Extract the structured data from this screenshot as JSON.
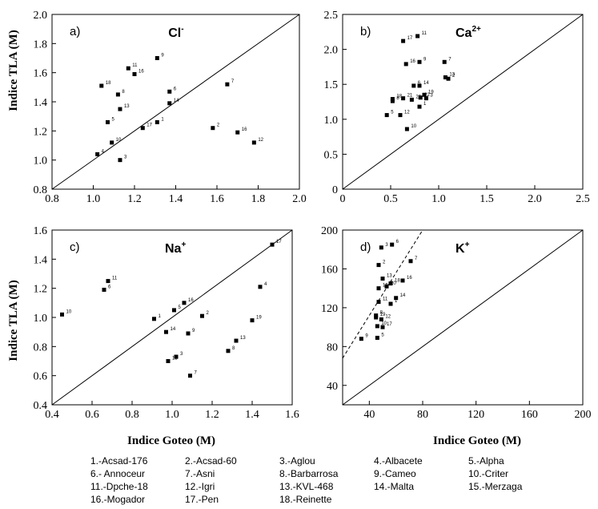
{
  "ylabel": "Indice TLA  (M)",
  "xlabel": "Indice Goteo  (M)",
  "legend": [
    "1.-Acsad-176",
    "2.-Acsad-60",
    "3.-Aglou",
    "4.-Albacete",
    "5.-Alpha",
    "6.- Annoceur",
    "7.-Asni",
    "8.-Barbarrosa",
    "9.-Cameo",
    "10.-Criter",
    "11.-Dpche-18",
    "12.-Igri",
    "13.-KVL-468",
    "14.-Malta",
    "15.-Merzaga",
    "16.-Mogador",
    "17.-Pen",
    "18.-Reinette"
  ],
  "chart_data": [
    {
      "type": "scatter",
      "panel": "a)",
      "ion": "Cl",
      "ion_sup": "-",
      "xlim": [
        0.8,
        2.0
      ],
      "ylim": [
        0.8,
        2.0
      ],
      "xticks": [
        "0.8",
        "1.0",
        "1.2",
        "1.4",
        "1.6",
        "1.8",
        "2.0"
      ],
      "yticks": [
        "0.8",
        "1.0",
        "1.2",
        "1.4",
        "1.6",
        "1.8",
        "2.0"
      ],
      "reference_line": "1:1",
      "points": [
        {
          "label": "1",
          "x": 1.31,
          "y": 1.26
        },
        {
          "label": "2",
          "x": 1.58,
          "y": 1.22
        },
        {
          "label": "3",
          "x": 1.13,
          "y": 1.0
        },
        {
          "label": "4",
          "x": 1.02,
          "y": 1.04
        },
        {
          "label": "5",
          "x": 1.07,
          "y": 1.26
        },
        {
          "label": "6",
          "x": 1.37,
          "y": 1.47
        },
        {
          "label": "7",
          "x": 1.65,
          "y": 1.52
        },
        {
          "label": "8",
          "x": 1.12,
          "y": 1.45
        },
        {
          "label": "9",
          "x": 1.31,
          "y": 1.7
        },
        {
          "label": "10",
          "x": 1.09,
          "y": 1.12
        },
        {
          "label": "11",
          "x": 1.17,
          "y": 1.63
        },
        {
          "label": "12",
          "x": 1.78,
          "y": 1.12
        },
        {
          "label": "13",
          "x": 1.13,
          "y": 1.35
        },
        {
          "label": "14",
          "x": 1.37,
          "y": 1.39
        },
        {
          "label": "16",
          "x": 1.2,
          "y": 1.59
        },
        {
          "label": "16",
          "x": 1.7,
          "y": 1.19
        },
        {
          "label": "17",
          "x": 1.24,
          "y": 1.22
        },
        {
          "label": "18",
          "x": 1.04,
          "y": 1.51
        }
      ]
    },
    {
      "type": "scatter",
      "panel": "b)",
      "ion": "Ca",
      "ion_sup": "2+",
      "xlim": [
        0,
        2.5
      ],
      "ylim": [
        0,
        2.5
      ],
      "xticks": [
        "0",
        "0.5",
        "1.0",
        "1.5",
        "2.0",
        "2.5"
      ],
      "yticks": [
        "0",
        "0.5",
        "1.0",
        "1.5",
        "2.0",
        "2.5"
      ],
      "reference_line": "1:1",
      "points": [
        {
          "label": "1",
          "x": 0.8,
          "y": 1.18
        },
        {
          "label": "2",
          "x": 1.1,
          "y": 1.58
        },
        {
          "label": "3",
          "x": 0.87,
          "y": 1.3
        },
        {
          "label": "5",
          "x": 0.46,
          "y": 1.06
        },
        {
          "label": "6",
          "x": 0.74,
          "y": 1.48
        },
        {
          "label": "7",
          "x": 1.06,
          "y": 1.82
        },
        {
          "label": "8",
          "x": 0.52,
          "y": 1.26
        },
        {
          "label": "9",
          "x": 0.8,
          "y": 1.82
        },
        {
          "label": "10",
          "x": 0.67,
          "y": 0.86
        },
        {
          "label": "11",
          "x": 0.78,
          "y": 2.19
        },
        {
          "label": "12",
          "x": 0.6,
          "y": 1.06
        },
        {
          "label": "13",
          "x": 1.07,
          "y": 1.6
        },
        {
          "label": "14",
          "x": 0.8,
          "y": 1.48
        },
        {
          "label": "16",
          "x": 0.66,
          "y": 1.79
        },
        {
          "label": "17",
          "x": 0.63,
          "y": 2.12
        },
        {
          "label": "18",
          "x": 0.52,
          "y": 1.29
        },
        {
          "label": "19",
          "x": 0.85,
          "y": 1.35
        },
        {
          "label": "20",
          "x": 0.72,
          "y": 1.28
        },
        {
          "label": "21",
          "x": 0.63,
          "y": 1.3
        },
        {
          "label": "22",
          "x": 0.81,
          "y": 1.31
        }
      ]
    },
    {
      "type": "scatter",
      "panel": "c)",
      "ion": "Na",
      "ion_sup": "+",
      "xlim": [
        0.4,
        1.6
      ],
      "ylim": [
        0.4,
        1.6
      ],
      "xticks": [
        "0.4",
        "0.6",
        "0.8",
        "1.0",
        "1.2",
        "1.4",
        "1.6"
      ],
      "yticks": [
        "0.4",
        "0.6",
        "0.8",
        "1.0",
        "1.2",
        "1.4",
        "1.6"
      ],
      "reference_line": "1:1",
      "points": [
        {
          "label": "1",
          "x": 0.91,
          "y": 0.99
        },
        {
          "label": "2",
          "x": 1.15,
          "y": 1.01
        },
        {
          "label": "3",
          "x": 1.02,
          "y": 0.73
        },
        {
          "label": "4",
          "x": 1.44,
          "y": 1.21
        },
        {
          "label": "5",
          "x": 1.01,
          "y": 1.05
        },
        {
          "label": "6",
          "x": 0.66,
          "y": 1.19
        },
        {
          "label": "7",
          "x": 1.09,
          "y": 0.6
        },
        {
          "label": "8",
          "x": 1.28,
          "y": 0.77
        },
        {
          "label": "9",
          "x": 1.08,
          "y": 0.89
        },
        {
          "label": "10",
          "x": 0.45,
          "y": 1.02
        },
        {
          "label": "11",
          "x": 0.68,
          "y": 1.25
        },
        {
          "label": "13",
          "x": 1.32,
          "y": 0.84
        },
        {
          "label": "14",
          "x": 0.97,
          "y": 0.9
        },
        {
          "label": "15",
          "x": 0.98,
          "y": 0.7
        },
        {
          "label": "16",
          "x": 1.06,
          "y": 1.1
        },
        {
          "label": "17",
          "x": 1.5,
          "y": 1.5
        },
        {
          "label": "19",
          "x": 1.4,
          "y": 0.98
        }
      ]
    },
    {
      "type": "scatter",
      "panel": "d)",
      "ion": "K",
      "ion_sup": "+",
      "xlim": [
        20,
        200
      ],
      "ylim": [
        20,
        200
      ],
      "xticks": [
        "40",
        "80",
        "120",
        "160",
        "200"
      ],
      "yticks": [
        "40",
        "80",
        "120",
        "160",
        "200"
      ],
      "reference_line": "1:1",
      "fit_line": {
        "x": [
          20,
          80
        ],
        "y": [
          68,
          200
        ]
      },
      "points": [
        {
          "label": "1",
          "x": 56,
          "y": 124
        },
        {
          "label": "2",
          "x": 47,
          "y": 164
        },
        {
          "label": "3",
          "x": 49,
          "y": 182
        },
        {
          "label": "5",
          "x": 46,
          "y": 89
        },
        {
          "label": "6",
          "x": 57,
          "y": 185
        },
        {
          "label": "7",
          "x": 71,
          "y": 168
        },
        {
          "label": "8",
          "x": 45,
          "y": 112
        },
        {
          "label": "9",
          "x": 34,
          "y": 88
        },
        {
          "label": "10",
          "x": 46,
          "y": 101
        },
        {
          "label": "11",
          "x": 47,
          "y": 126
        },
        {
          "label": "12",
          "x": 49,
          "y": 108
        },
        {
          "label": "13",
          "x": 50,
          "y": 150
        },
        {
          "label": "14",
          "x": 60,
          "y": 130
        },
        {
          "label": "15",
          "x": 47,
          "y": 140
        },
        {
          "label": "16",
          "x": 65,
          "y": 148
        },
        {
          "label": "17",
          "x": 50,
          "y": 100
        },
        {
          "label": "18",
          "x": 56,
          "y": 145
        },
        {
          "label": "19",
          "x": 45,
          "y": 110
        },
        {
          "label": "20",
          "x": 53,
          "y": 142
        }
      ]
    }
  ]
}
